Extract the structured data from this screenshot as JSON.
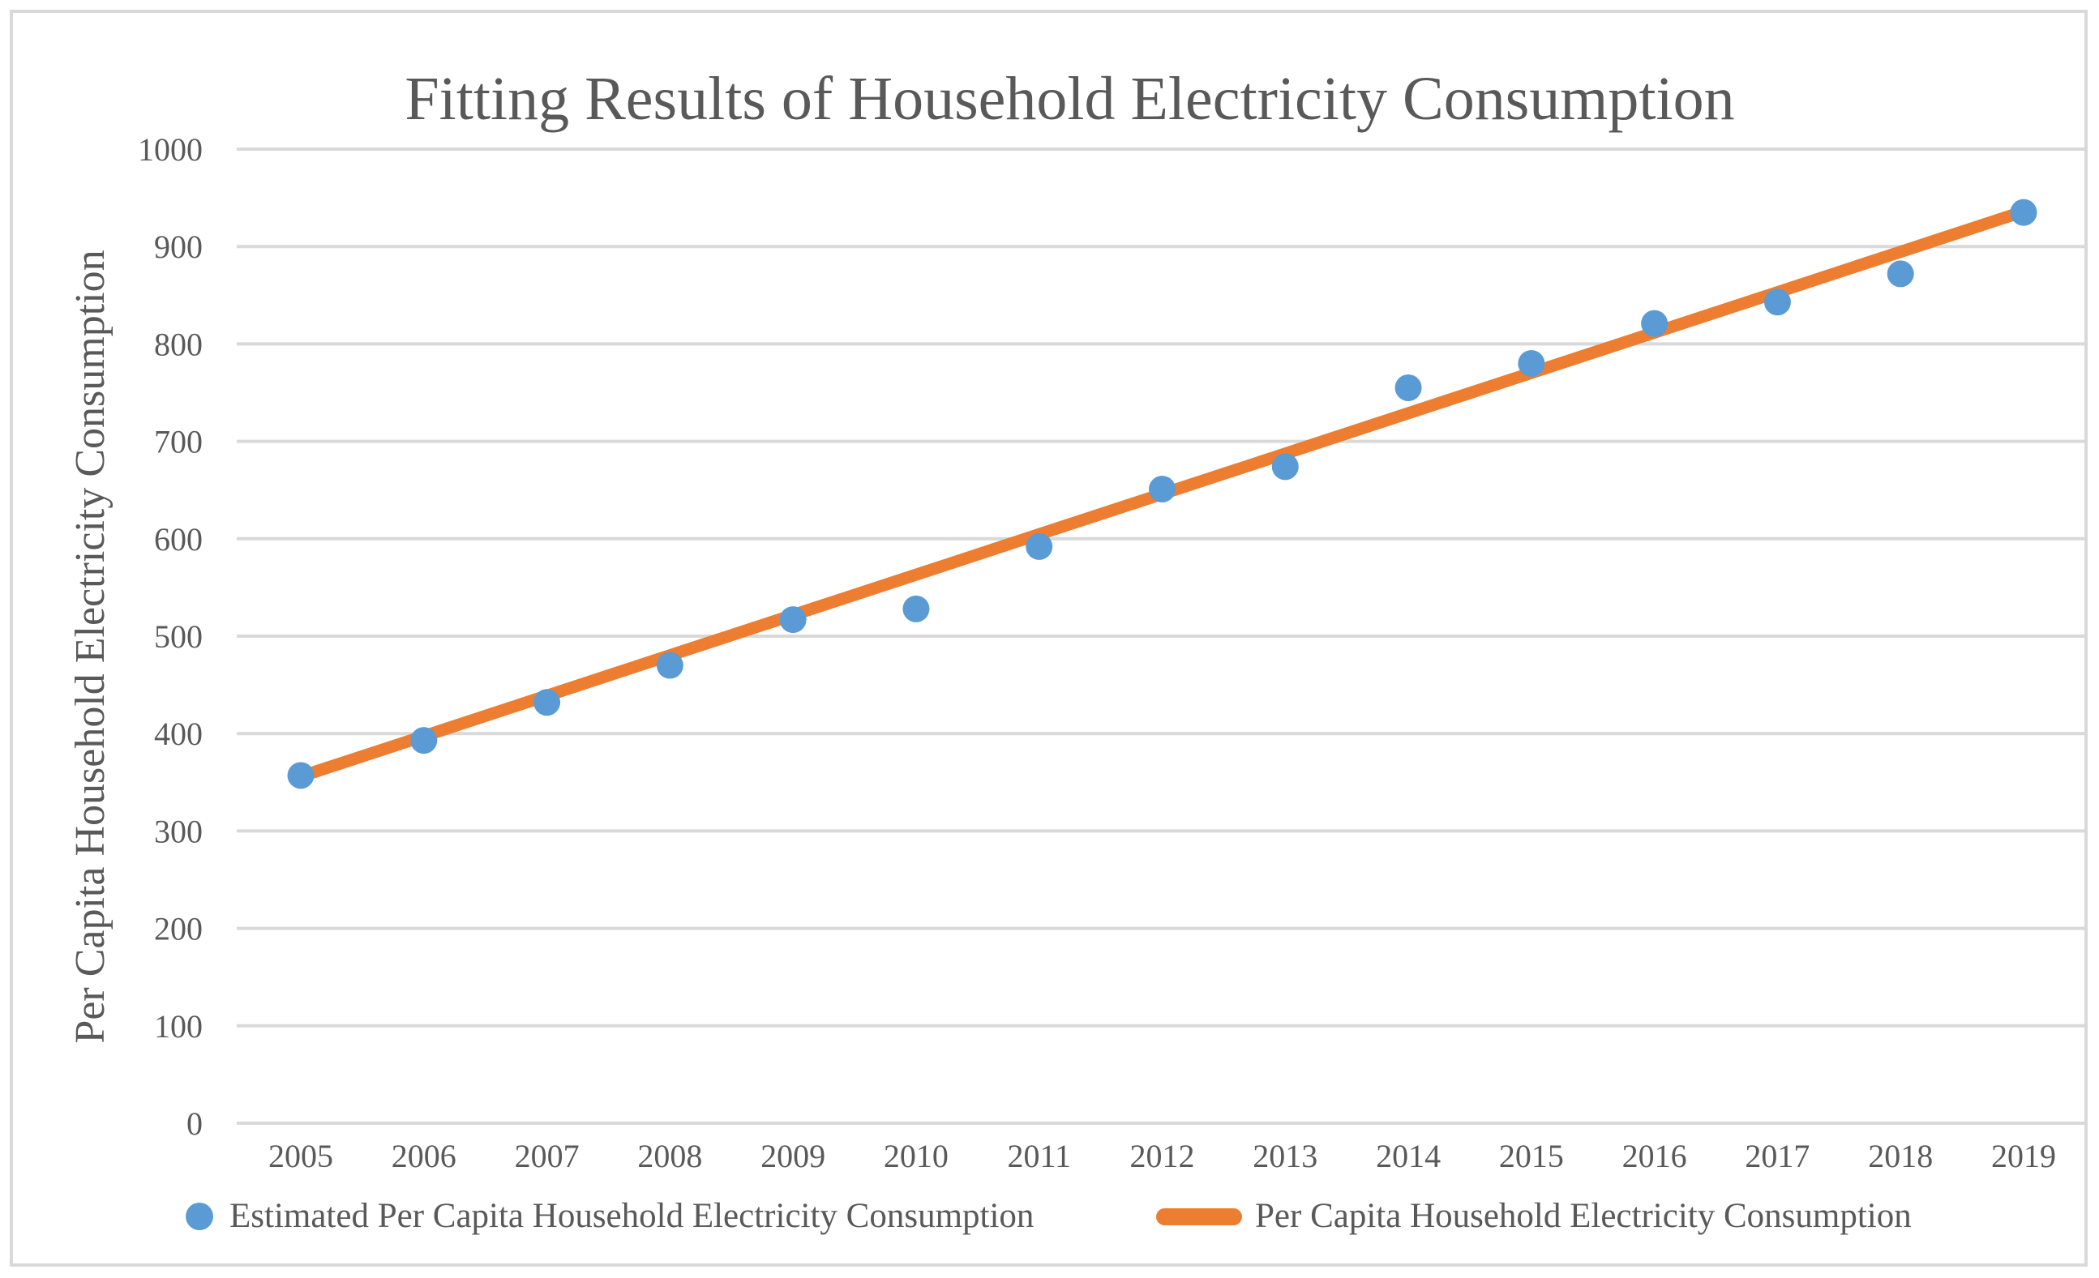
{
  "figure": {
    "background": "#FFFFFF",
    "border_color": "#D9D9D9"
  },
  "colors": {
    "text": "#595959",
    "gridline": "#D9D9D9",
    "scatter_point": "#5B9BD5",
    "trend_line": "#ED7D31"
  },
  "chart_data": {
    "type": "scatter",
    "title": "Fitting Results of Household Electricity Consumption",
    "xlabel": "",
    "ylabel": "Per Capita Household Electricity Consumption",
    "x": [
      2005,
      2006,
      2007,
      2008,
      2009,
      2010,
      2011,
      2012,
      2013,
      2014,
      2015,
      2016,
      2017,
      2018,
      2019
    ],
    "series": [
      {
        "name": "Estimated Per Capita Household Electricity Consumption",
        "type": "scatter",
        "marker": "circle",
        "color": "#5B9BD5",
        "values": [
          357,
          393,
          432,
          470,
          517,
          528,
          592,
          651,
          674,
          755,
          780,
          821,
          843,
          872,
          935
        ]
      },
      {
        "name": "Per Capita Household Electricity Consumption",
        "type": "line",
        "color": "#ED7D31",
        "values": [
          356.0,
          397.4,
          438.9,
          480.3,
          521.7,
          563.1,
          604.6,
          646.0,
          687.4,
          728.9,
          770.3,
          811.7,
          853.1,
          894.6,
          936.0
        ]
      }
    ],
    "ylim": [
      0,
      1000
    ],
    "ytick_step": 100,
    "yticks": [
      0,
      100,
      200,
      300,
      400,
      500,
      600,
      700,
      800,
      900,
      1000
    ],
    "grid": "horizontal",
    "legend_position": "bottom"
  }
}
